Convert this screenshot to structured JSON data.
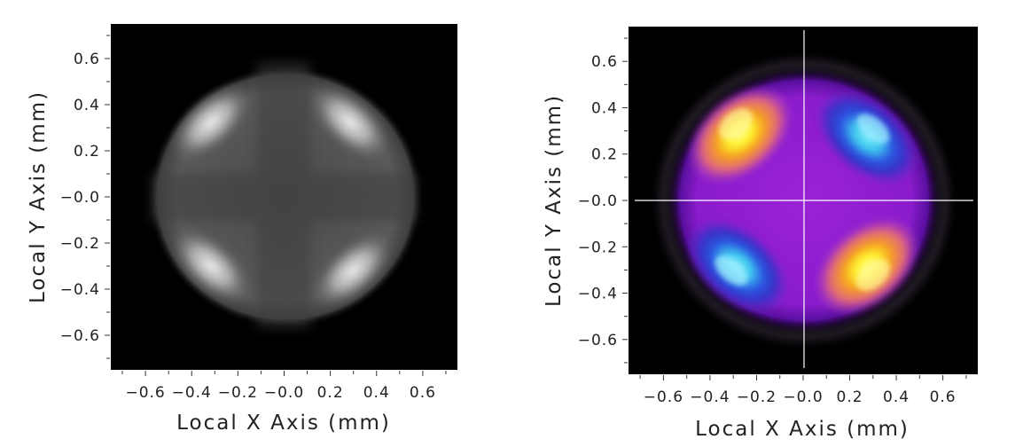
{
  "panels": [
    {
      "name": "grayscale",
      "xlabel": "Local X Axis (mm)",
      "ylabel": "Local Y Axis (mm)",
      "xticks": [
        "−0.6",
        "−0.4",
        "−0.2",
        "−0.0",
        "0.2",
        "0.4",
        "0.6"
      ],
      "yticks": [
        "0.6",
        "0.4",
        "0.2",
        "−0.0",
        "−0.2",
        "−0.4",
        "−0.6"
      ],
      "xlim": [
        -0.75,
        0.75
      ],
      "ylim": [
        -0.75,
        0.75
      ],
      "crosshair": false,
      "colormap": "grayscale"
    },
    {
      "name": "false-color",
      "xlabel": "Local X Axis (mm)",
      "ylabel": "Local Y Axis (mm)",
      "xticks": [
        "−0.6",
        "−0.4",
        "−0.2",
        "−0.0",
        "0.2",
        "0.4",
        "0.6"
      ],
      "yticks": [
        "0.6",
        "0.4",
        "0.2",
        "−0.0",
        "−0.2",
        "−0.4",
        "−0.6"
      ],
      "xlim": [
        -0.75,
        0.75
      ],
      "ylim": [
        -0.75,
        0.75
      ],
      "crosshair": true,
      "colormap": "false-color"
    }
  ],
  "colors": {
    "background": "#000000",
    "crosshair": "#ffffff",
    "gray_light": "#e8e8e8",
    "gray_mid": "#575757",
    "purple": "#8a1ccc",
    "blue": "#2a55e0",
    "cyan": "#55d8f5",
    "orange": "#f08a28",
    "yellow": "#fffa28"
  }
}
